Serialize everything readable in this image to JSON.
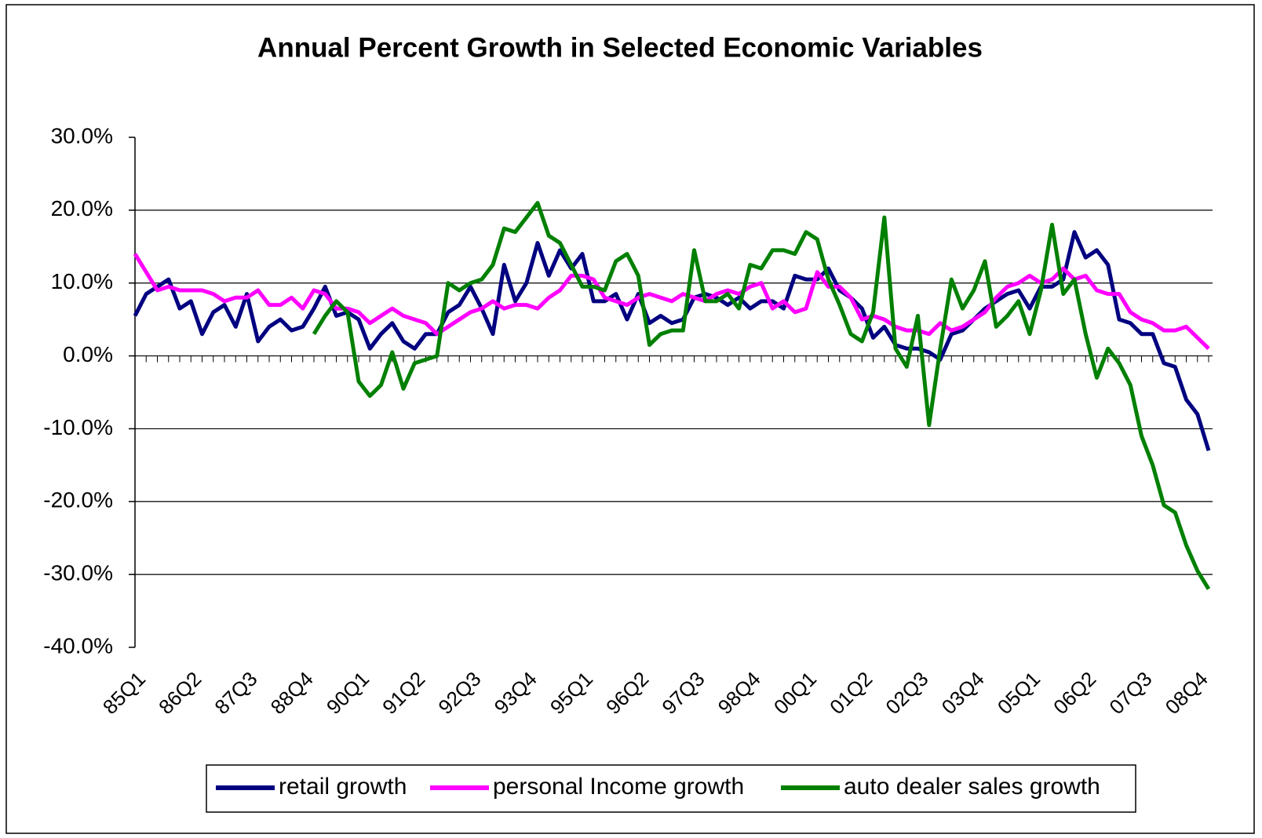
{
  "chart_data": {
    "type": "line",
    "title": "Annual Percent Growth in Selected Economic Variables",
    "categories": [
      "85Q1",
      null,
      null,
      null,
      null,
      "86Q2",
      null,
      null,
      null,
      null,
      "87Q3",
      null,
      null,
      null,
      null,
      "88Q4",
      null,
      null,
      null,
      null,
      "90Q1",
      null,
      null,
      null,
      null,
      "91Q2",
      null,
      null,
      null,
      null,
      "92Q3",
      null,
      null,
      null,
      null,
      "93Q4",
      null,
      null,
      null,
      null,
      "95Q1",
      null,
      null,
      null,
      null,
      "96Q2",
      null,
      null,
      null,
      null,
      "97Q3",
      null,
      null,
      null,
      null,
      "98Q4",
      null,
      null,
      null,
      null,
      "00Q1",
      null,
      null,
      null,
      null,
      "01Q2",
      null,
      null,
      null,
      null,
      "02Q3",
      null,
      null,
      null,
      null,
      "03Q4",
      null,
      null,
      null,
      null,
      "05Q1",
      null,
      null,
      null,
      null,
      "06Q2",
      null,
      null,
      null,
      null,
      "07Q3",
      null,
      null,
      null,
      null,
      "08Q4",
      null
    ],
    "series": [
      {
        "name": "retail growth",
        "color": "#000080",
        "values": [
          5.5,
          8.5,
          9.5,
          10.5,
          6.5,
          7.5,
          3,
          6,
          7,
          4,
          8.5,
          2,
          4,
          5,
          3.5,
          4,
          6.5,
          9.5,
          5.5,
          6,
          5,
          1,
          3,
          4.5,
          2,
          1,
          3,
          3,
          6,
          7,
          9.5,
          6.5,
          3,
          12.5,
          7.5,
          10,
          15.5,
          11,
          14.5,
          12,
          14,
          7.5,
          7.5,
          8.5,
          5,
          8.5,
          4.5,
          5.5,
          4.5,
          5,
          8,
          8.5,
          8,
          7,
          8,
          6.5,
          7.5,
          7.5,
          6.5,
          11,
          10.5,
          10.5,
          12,
          9,
          8,
          6.5,
          2.5,
          4,
          1.5,
          1,
          1,
          0.5,
          -0.5,
          3,
          3.5,
          5,
          6.5,
          7.5,
          8.5,
          9,
          6.5,
          9.5,
          9.5,
          10.5,
          17,
          13.5,
          14.5,
          12.5,
          5,
          4.5,
          3,
          3,
          -1,
          -1.5,
          -6,
          -8,
          -13
        ]
      },
      {
        "name": "personal Income growth",
        "color": "#ff00ff",
        "values": [
          14,
          11.5,
          9,
          9.5,
          9,
          9,
          9,
          8.5,
          7.5,
          8,
          8,
          9,
          7,
          7,
          8,
          6.5,
          9,
          8.5,
          6.5,
          6.5,
          6,
          4.5,
          5.5,
          6.5,
          5.5,
          5,
          4.5,
          3,
          4,
          5,
          6,
          6.5,
          7.5,
          6.5,
          7,
          7,
          6.5,
          8,
          9,
          11,
          11,
          10.5,
          8,
          7.5,
          7,
          8,
          8.5,
          8,
          7.5,
          8.5,
          8,
          7.5,
          8.5,
          9,
          8.5,
          9.5,
          10,
          6.5,
          7.5,
          6,
          6.5,
          11.5,
          9.5,
          9.5,
          8,
          5,
          5.5,
          5,
          4,
          3.5,
          3.5,
          3,
          4.5,
          3.5,
          4,
          5,
          6,
          8,
          9.5,
          10,
          11,
          10,
          10.5,
          12,
          10.5,
          11,
          9,
          8.5,
          8.5,
          6,
          5,
          4.5,
          3.5,
          3.5,
          4,
          2.5,
          1
        ]
      },
      {
        "name": "auto dealer sales growth",
        "color": "#008000",
        "values": [
          null,
          null,
          null,
          null,
          null,
          null,
          null,
          null,
          null,
          null,
          null,
          null,
          null,
          null,
          null,
          null,
          3,
          5.5,
          7.5,
          6,
          -3.5,
          -5.5,
          -4,
          0.5,
          -4.5,
          -1,
          -0.5,
          0,
          10,
          9,
          10,
          10.5,
          12.5,
          17.5,
          17,
          19,
          21,
          16.5,
          15.5,
          12.5,
          9.5,
          9.5,
          9,
          13,
          14,
          11,
          1.5,
          3,
          3.5,
          3.5,
          14.5,
          7.5,
          7.5,
          8.5,
          6.5,
          12.5,
          12,
          14.5,
          14.5,
          14,
          17,
          16,
          10.5,
          7,
          3,
          2,
          6,
          19,
          1,
          -1.5,
          5.5,
          -9.5,
          1,
          10.5,
          6.5,
          9,
          13,
          4,
          5.5,
          7.5,
          3,
          9,
          18,
          8.5,
          10.5,
          3,
          -3,
          1,
          -1,
          -4,
          -11,
          -15,
          -20.5,
          -21.5,
          -26,
          -29.5,
          -32
        ]
      }
    ],
    "ylim": [
      -40,
      30
    ],
    "yticks": [
      {
        "value": -40,
        "label": "-40.0%"
      },
      {
        "value": -30,
        "label": "-30.0%"
      },
      {
        "value": -20,
        "label": "-20.0%"
      },
      {
        "value": -10,
        "label": "-10.0%"
      },
      {
        "value": 0,
        "label": "0.0%"
      },
      {
        "value": 10,
        "label": "10.0%"
      },
      {
        "value": 20,
        "label": "20.0%"
      },
      {
        "value": 30,
        "label": "30.0%"
      }
    ],
    "grid": true,
    "legend": "bottom"
  }
}
